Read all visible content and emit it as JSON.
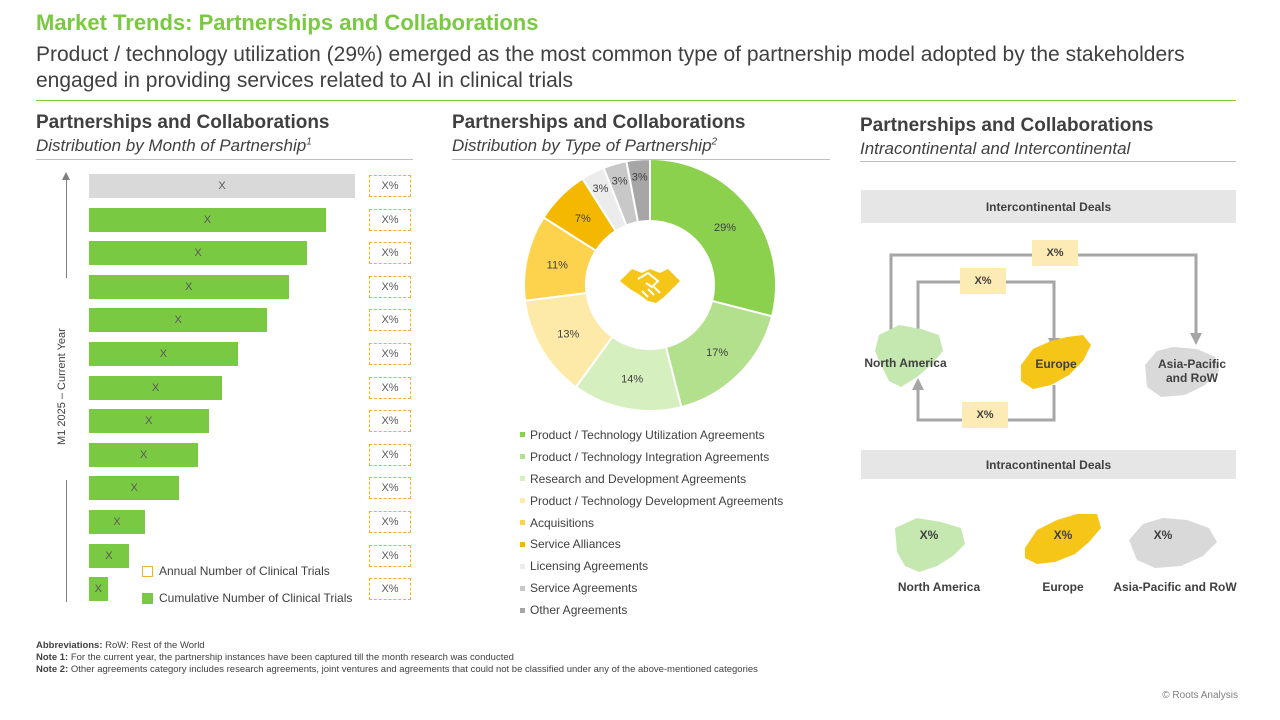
{
  "header": {
    "title": "Market Trends: Partnerships and Collaborations",
    "subtitle": "Product / technology utilization (29%) emerged as the most common type of partnership model adopted by the stakeholders engaged in providing services related to AI in clinical trials"
  },
  "left_panel": {
    "title": "Partnerships and Collaborations",
    "subtitle": "Distribution by Month of Partnership",
    "subtitle_sup": "1",
    "axis_label": "M1 2025 – Current Year",
    "legend": [
      {
        "label": "Annual Number of Clinical Trials",
        "color": "#f0b323",
        "style": "outline"
      },
      {
        "label": "Cumulative Number of Clinical Trials",
        "color": "#7ac943",
        "style": "fill"
      }
    ]
  },
  "middle_panel": {
    "title": "Partnerships and Collaborations",
    "subtitle": "Distribution by Type of Partnership",
    "subtitle_sup": "2",
    "center_icon": "handshake-icon"
  },
  "right_panel": {
    "title": "Partnerships and Collaborations",
    "subtitle": "Intracontinental and Intercontinental",
    "inter_banner": "Intercontinental Deals",
    "intra_banner": "Intracontinental Deals",
    "inter_boxes": [
      "X%",
      "X%",
      "X%"
    ],
    "inter_labels": [
      "North America",
      "Europe",
      "Asia-Pacific and RoW"
    ],
    "intra_values": [
      "X%",
      "X%",
      "X%"
    ],
    "intra_labels": [
      "North America",
      "Europe",
      "Asia-Pacific and RoW"
    ],
    "colors": {
      "north_america": "#c5e8b0",
      "europe": "#f5c518",
      "asia": "#d9d9d9",
      "arrow": "#a6a6a6"
    }
  },
  "chart_data": [
    {
      "type": "bar",
      "orientation": "horizontal",
      "bar_labels": [
        "X",
        "X",
        "X",
        "X",
        "X",
        "X",
        "X",
        "X",
        "X",
        "X",
        "X",
        "X",
        "X"
      ],
      "values": [
        100,
        89,
        82,
        75,
        67,
        56,
        50,
        45,
        41,
        34,
        21,
        15,
        7
      ],
      "percent_labels": [
        "X%",
        "X%",
        "X%",
        "X%",
        "X%",
        "X%",
        "X%",
        "X%",
        "X%",
        "X%",
        "X%",
        "X%",
        "X%"
      ],
      "colors": [
        "#d9d9d9",
        "#7ac943",
        "#7ac943",
        "#7ac943",
        "#7ac943",
        "#7ac943",
        "#7ac943",
        "#7ac943",
        "#7ac943",
        "#7ac943",
        "#7ac943",
        "#7ac943",
        "#7ac943"
      ]
    },
    {
      "type": "pie",
      "donut": true,
      "categories": [
        "Product / Technology Utilization Agreements",
        "Product / Technology Integration Agreements",
        "Research and Development Agreements",
        "Product / Technology Development Agreements",
        "Acquisitions",
        "Service Alliances",
        "Licensing Agreements",
        "Service Agreements",
        "Other Agreements"
      ],
      "values": [
        29,
        17,
        14,
        13,
        11,
        7,
        3,
        3,
        3
      ],
      "labels": [
        "29%",
        "17%",
        "14%",
        "13%",
        "11%",
        "7%",
        "3%",
        "3%",
        "3%"
      ],
      "colors": [
        "#8cd14e",
        "#b3e08c",
        "#d6efbf",
        "#fdeaa8",
        "#fdd34d",
        "#f5b800",
        "#ececec",
        "#c8c8c8",
        "#a6a6a6"
      ]
    }
  ],
  "footnotes": [
    {
      "label": "Abbreviations:",
      "text": " RoW: Rest of the World"
    },
    {
      "label": "Note 1:",
      "text": " For the current year, the partnership instances have been captured till the month research was conducted"
    },
    {
      "label": "Note 2:",
      "text": " Other agreements category includes research agreements, joint ventures and agreements that could not be classified under any of the above-mentioned categories"
    }
  ],
  "copyright": "© Roots Analysis"
}
